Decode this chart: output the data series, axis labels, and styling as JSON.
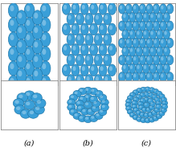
{
  "fig_width": 2.19,
  "fig_height": 1.89,
  "dpi": 100,
  "sphere_color_main": "#3a9fd8",
  "sphere_color_light": "#6ac0f0",
  "sphere_edge": "#1a6fa0",
  "panel_border": "#888888",
  "bg_color": "#f2f2f2",
  "label_fontsize": 7,
  "labels": [
    "(a)",
    "(b)",
    "(c)"
  ]
}
